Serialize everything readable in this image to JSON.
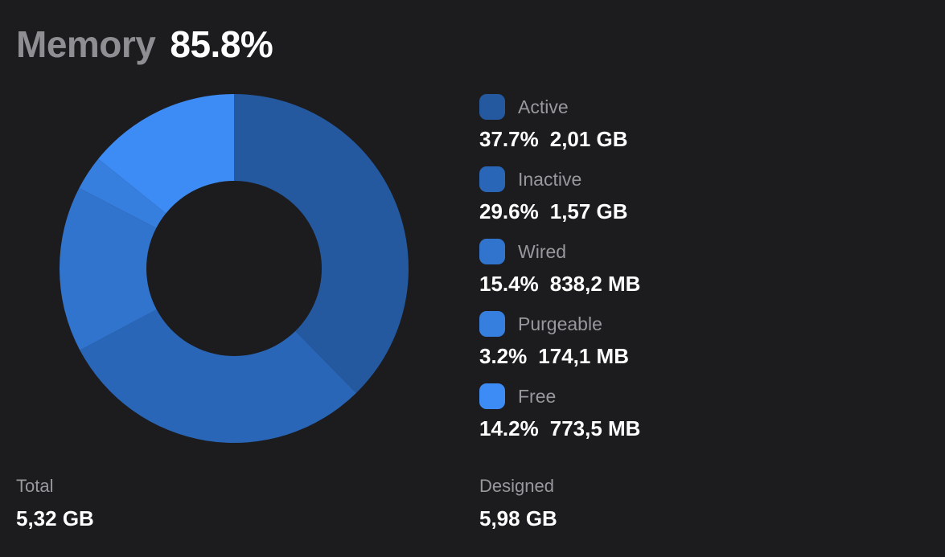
{
  "header": {
    "label": "Memory",
    "value": "85.8%"
  },
  "chart_data": {
    "type": "pie",
    "categories": [
      "Active",
      "Inactive",
      "Wired",
      "Purgeable",
      "Free"
    ],
    "values": [
      37.7,
      29.6,
      15.4,
      3.2,
      14.2
    ],
    "colors": [
      "#24589f",
      "#2a66b8",
      "#3174cd",
      "#367fdf",
      "#3d8cf5"
    ]
  },
  "legend": [
    {
      "name": "Active",
      "percent": "37.7%",
      "size": "2,01 GB",
      "color": "#24589f"
    },
    {
      "name": "Inactive",
      "percent": "29.6%",
      "size": "1,57 GB",
      "color": "#2a66b8"
    },
    {
      "name": "Wired",
      "percent": "15.4%",
      "size": "838,2 MB",
      "color": "#3174cd"
    },
    {
      "name": "Purgeable",
      "percent": "3.2%",
      "size": "174,1 MB",
      "color": "#367fdf"
    },
    {
      "name": "Free",
      "percent": "14.2%",
      "size": "773,5 MB",
      "color": "#3d8cf5"
    }
  ],
  "total": {
    "label": "Total",
    "value": "5,32 GB"
  },
  "designed": {
    "label": "Designed",
    "value": "5,98 GB"
  }
}
